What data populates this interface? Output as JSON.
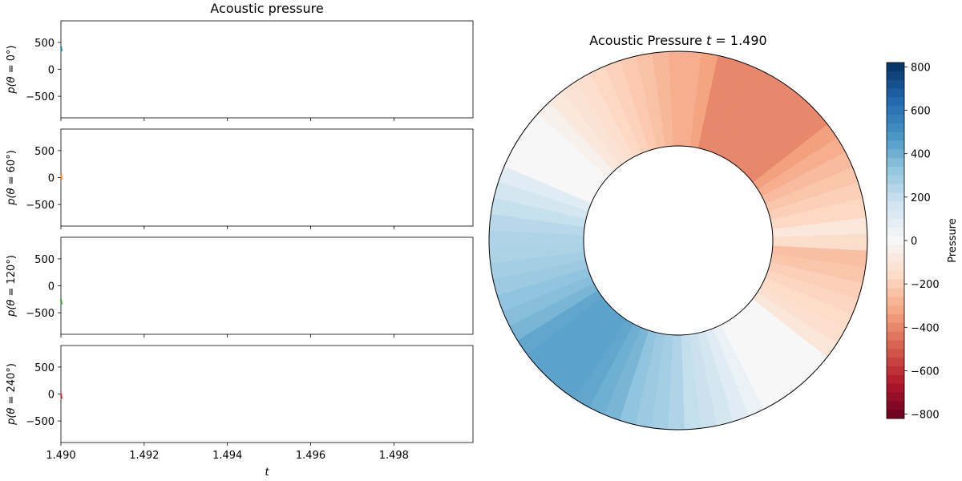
{
  "chart_data": [
    {
      "type": "line",
      "title": "Acoustic pressure",
      "xlabel": "t",
      "xlim": [
        1.49,
        1.4999
      ],
      "x_ticks": [
        "1.490",
        "1.492",
        "1.494",
        "1.496",
        "1.498"
      ],
      "ylim": [
        -900,
        900
      ],
      "y_ticks": [
        "500",
        "0",
        "−500"
      ],
      "panels": [
        {
          "ylabel_text": "p(θ = ",
          "ylabel_angle": "0",
          "ylabel_unit": "°)",
          "color": "#1f77b4",
          "x": [
            1.49
          ],
          "y": [
            380
          ]
        },
        {
          "ylabel_text": "p(θ = ",
          "ylabel_angle": "60",
          "ylabel_unit": "°)",
          "color": "#ff7f0e",
          "x": [
            1.49
          ],
          "y": [
            10
          ]
        },
        {
          "ylabel_text": "p(θ = ",
          "ylabel_angle": "120",
          "ylabel_unit": "°)",
          "color": "#2ca02c",
          "x": [
            1.49
          ],
          "y": [
            -300
          ]
        },
        {
          "ylabel_text": "p(θ = ",
          "ylabel_angle": "240",
          "ylabel_unit": "°)",
          "color": "#d62728",
          "x": [
            1.49
          ],
          "y": [
            -40
          ]
        }
      ]
    },
    {
      "type": "heatmap",
      "title_prefix": "Acoustic Pressure ",
      "title_var": "t",
      "title_suffix": " = 1.490",
      "colorbar_label": "Pressure",
      "colorbar_range": [
        -820,
        820
      ],
      "colorbar_ticks": [
        "800",
        "600",
        "400",
        "200",
        "0",
        "−200",
        "−400",
        "−600",
        "−800"
      ],
      "colorbar_tick_values": [
        800,
        600,
        400,
        200,
        0,
        -200,
        -400,
        -600,
        -800
      ],
      "colormap": [
        "#67001f",
        "#b2182b",
        "#d6604d",
        "#f4a582",
        "#fddbc7",
        "#f7f7f7",
        "#d1e5f0",
        "#92c5de",
        "#4393c3",
        "#2166ac",
        "#053061"
      ],
      "gray_band_color": "#ebebeb",
      "inner_radius_ratio": 0.5,
      "segment_angles_deg": [
        2,
        7,
        13,
        18,
        23,
        28,
        33,
        38,
        43,
        48,
        53,
        58,
        63,
        68,
        73,
        78,
        83,
        88,
        93,
        98,
        103,
        108,
        113,
        118,
        123,
        128,
        133,
        138,
        143,
        148,
        152,
        157,
        162,
        167,
        172,
        177,
        182,
        187,
        192,
        197,
        202,
        207,
        212,
        217,
        222,
        227,
        232,
        237,
        242,
        247,
        252,
        257,
        262,
        267,
        272,
        277,
        282,
        287,
        292,
        297,
        302,
        307,
        312,
        317,
        322,
        327,
        332,
        337,
        342,
        347,
        352,
        357
      ],
      "pressure": [
        -90,
        -170,
        -200,
        -230,
        -260,
        -300,
        -340,
        -400,
        -400,
        -400,
        -400,
        -400,
        -400,
        -400,
        -400,
        -330,
        -300,
        -300,
        -270,
        -240,
        -220,
        -190,
        -170,
        -140,
        -120,
        -90,
        -40,
        0,
        0,
        0,
        0,
        100,
        150,
        190,
        230,
        250,
        260,
        280,
        300,
        330,
        350,
        380,
        430,
        440,
        440,
        440,
        440,
        430,
        400,
        380,
        330,
        300,
        280,
        250,
        200,
        180,
        150,
        100,
        50,
        0,
        0,
        0,
        0,
        0,
        -100,
        -140,
        -160,
        -180,
        -200,
        -230,
        -250,
        -150
      ]
    }
  ]
}
